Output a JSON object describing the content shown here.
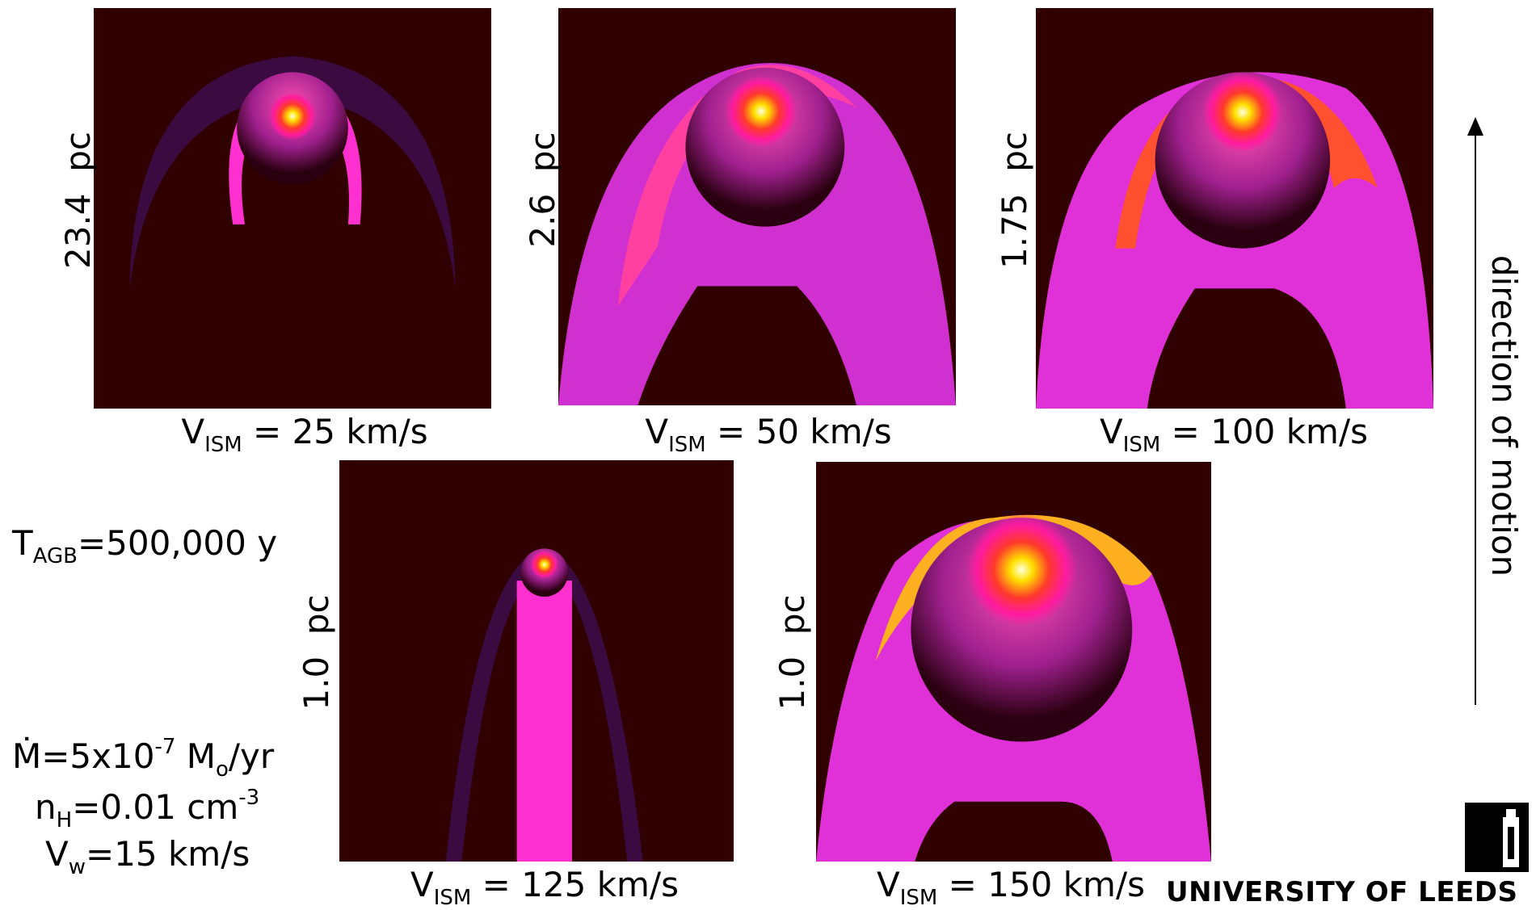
{
  "panels": [
    {
      "scale": "23.4  pc",
      "velocity": {
        "symbol": "V",
        "sub": "ISM",
        "rest": " = 25 km/s"
      }
    },
    {
      "scale": "2.6  pc",
      "velocity": {
        "symbol": "V",
        "sub": "ISM",
        "rest": " = 50 km/s"
      }
    },
    {
      "scale": "1.75  pc",
      "velocity": {
        "symbol": "V",
        "sub": "ISM",
        "rest": " = 100 km/s"
      }
    },
    {
      "scale": "1.0  pc",
      "velocity": {
        "symbol": "V",
        "sub": "ISM",
        "rest": " = 125 km/s"
      }
    },
    {
      "scale": "1.0  pc",
      "velocity": {
        "symbol": "V",
        "sub": "ISM",
        "rest": " = 150 km/s"
      }
    }
  ],
  "parameters": {
    "t_agb": {
      "symbol": "T",
      "sub": "AGB",
      "rest": "=500,000 y"
    },
    "mdot": {
      "symbol": "Ṁ=5x10",
      "sup": "-7",
      "unit": " M",
      "sub": "o",
      "rest": "/yr"
    },
    "n_h": {
      "symbol": "n",
      "sub": "H",
      "rest": "=0.01 cm",
      "sup": "-3"
    },
    "v_w": {
      "symbol": "V",
      "sub": "w",
      "rest": "=15 km/s"
    }
  },
  "direction": "direction of motion",
  "logo": "UNIVERSITY OF LEEDS"
}
